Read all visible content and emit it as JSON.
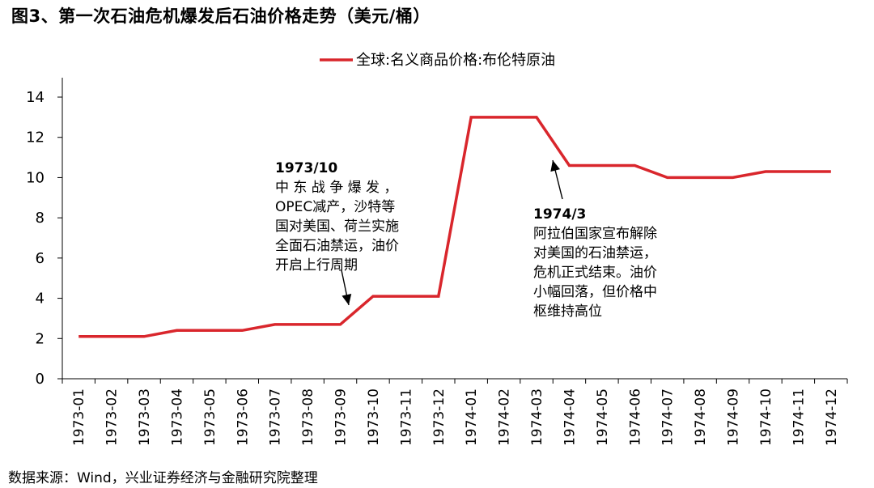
{
  "title": "图3、第一次石油危机爆发后石油价格走势（美元/桶）",
  "source": "数据来源：Wind，兴业证券经济与金融研究院整理",
  "chart_data": {
    "type": "line",
    "legend_position": "top-center",
    "grid": false,
    "ylim": [
      0,
      14
    ],
    "yticks": [
      0,
      2,
      4,
      6,
      8,
      10,
      12,
      14
    ],
    "categories": [
      "1973-01",
      "1973-02",
      "1973-03",
      "1973-04",
      "1973-05",
      "1973-06",
      "1973-07",
      "1973-08",
      "1973-09",
      "1973-10",
      "1973-11",
      "1973-12",
      "1974-01",
      "1974-02",
      "1974-03",
      "1974-04",
      "1974-05",
      "1974-06",
      "1974-07",
      "1974-08",
      "1974-09",
      "1974-10",
      "1974-11",
      "1974-12"
    ],
    "series": [
      {
        "name": "全球:名义商品价格:布伦特原油",
        "color": "#d9262c",
        "values": [
          2.1,
          2.1,
          2.1,
          2.4,
          2.4,
          2.4,
          2.7,
          2.7,
          2.7,
          4.1,
          4.1,
          4.1,
          13.0,
          13.0,
          13.0,
          10.6,
          10.6,
          10.6,
          10.0,
          10.0,
          10.0,
          10.3,
          10.3,
          10.3
        ]
      }
    ],
    "annotations": [
      {
        "title": "1973/10",
        "lines": [
          "中 东 战 争 爆 发 ，",
          "OPEC减产，沙特等",
          "国对美国、荷兰实施",
          "全面石油禁运，油价",
          "开启上行周期"
        ]
      },
      {
        "title": "1974/3",
        "lines": [
          "阿拉伯国家宣布解除",
          "对美国的石油禁运，",
          "危机正式结束。油价",
          "小幅回落，但价格中",
          "枢维持高位"
        ]
      }
    ]
  }
}
